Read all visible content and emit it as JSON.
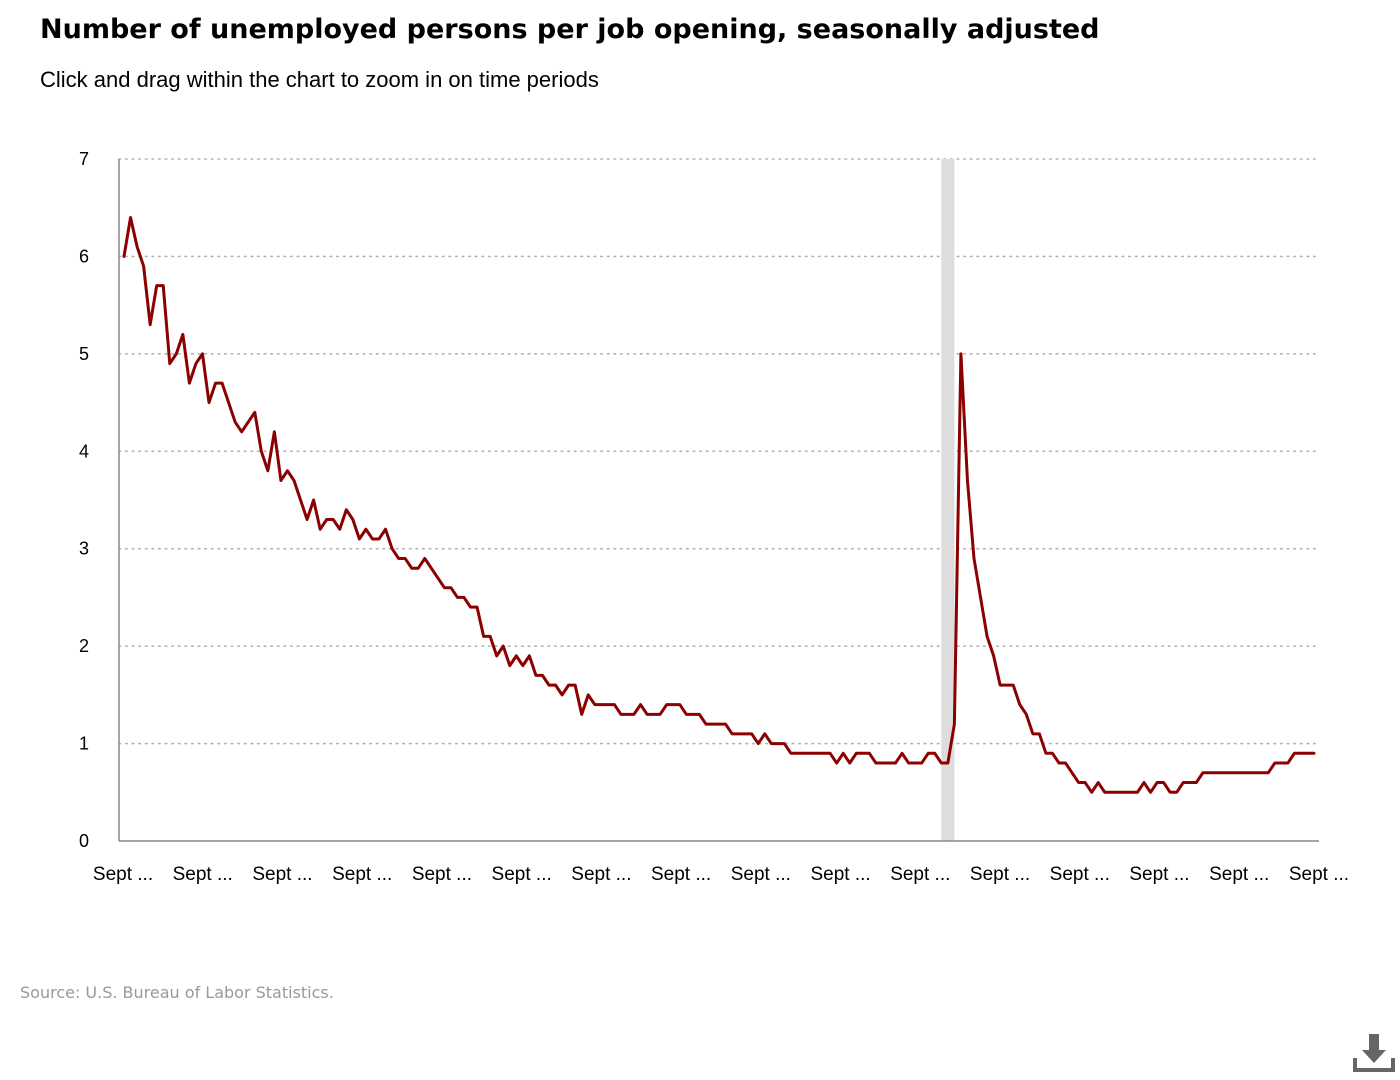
{
  "header": {
    "title": "Number of unemployed persons per job opening, seasonally adjusted",
    "subtitle": "Click and drag within the chart to zoom in on time periods"
  },
  "footer": {
    "source": "Source: U.S. Bureau of Labor Statistics."
  },
  "download": {
    "icon": "download-icon"
  },
  "colors": {
    "line": "#8b0000",
    "recession_band": "#dddddd",
    "grid": "#b3b3b3",
    "axis": "#888888"
  },
  "chart_data": {
    "type": "line",
    "title": "Number of unemployed persons per job opening, seasonally adjusted",
    "xlabel": "",
    "ylabel": "",
    "ylim": [
      0,
      7
    ],
    "yticks": [
      0,
      1,
      2,
      3,
      4,
      5,
      6,
      7
    ],
    "xtick_labels": [
      "Sept ...",
      "Sept ...",
      "Sept ...",
      "Sept ...",
      "Sept ...",
      "Sept ...",
      "Sept ...",
      "Sept ...",
      "Sept ...",
      "Sept ...",
      "Sept ...",
      "Sept ...",
      "Sept ...",
      "Sept ...",
      "Sept ...",
      "Sept ..."
    ],
    "grid": "horizontal-dotted",
    "shaded_periods": [
      {
        "start_index": 125,
        "end_index": 127
      }
    ],
    "series": [
      {
        "values": [
          6.0,
          6.4,
          6.1,
          5.9,
          5.3,
          5.7,
          5.7,
          4.9,
          5.0,
          5.2,
          4.7,
          4.9,
          5.0,
          4.5,
          4.7,
          4.7,
          4.5,
          4.3,
          4.2,
          4.3,
          4.4,
          4.0,
          3.8,
          4.2,
          3.7,
          3.8,
          3.7,
          3.5,
          3.3,
          3.5,
          3.2,
          3.3,
          3.3,
          3.2,
          3.4,
          3.3,
          3.1,
          3.2,
          3.1,
          3.1,
          3.2,
          3.0,
          2.9,
          2.9,
          2.8,
          2.8,
          2.9,
          2.8,
          2.7,
          2.6,
          2.6,
          2.5,
          2.5,
          2.4,
          2.4,
          2.1,
          2.1,
          1.9,
          2.0,
          1.8,
          1.9,
          1.8,
          1.9,
          1.7,
          1.7,
          1.6,
          1.6,
          1.5,
          1.6,
          1.6,
          1.3,
          1.5,
          1.4,
          1.4,
          1.4,
          1.4,
          1.3,
          1.3,
          1.3,
          1.4,
          1.3,
          1.3,
          1.3,
          1.4,
          1.4,
          1.4,
          1.3,
          1.3,
          1.3,
          1.2,
          1.2,
          1.2,
          1.2,
          1.1,
          1.1,
          1.1,
          1.1,
          1.0,
          1.1,
          1.0,
          1.0,
          1.0,
          0.9,
          0.9,
          0.9,
          0.9,
          0.9,
          0.9,
          0.9,
          0.8,
          0.9,
          0.8,
          0.9,
          0.9,
          0.9,
          0.8,
          0.8,
          0.8,
          0.8,
          0.9,
          0.8,
          0.8,
          0.8,
          0.9,
          0.9,
          0.8,
          0.8,
          1.2,
          5.0,
          3.7,
          2.9,
          2.5,
          2.1,
          1.9,
          1.6,
          1.6,
          1.6,
          1.4,
          1.3,
          1.1,
          1.1,
          0.9,
          0.9,
          0.8,
          0.8,
          0.7,
          0.6,
          0.6,
          0.5,
          0.6,
          0.5,
          0.5,
          0.5,
          0.5,
          0.5,
          0.5,
          0.6,
          0.5,
          0.6,
          0.6,
          0.5,
          0.5,
          0.6,
          0.6,
          0.6,
          0.7,
          0.7,
          0.7,
          0.7,
          0.7,
          0.7,
          0.7,
          0.7,
          0.7,
          0.7,
          0.7,
          0.8,
          0.8,
          0.8,
          0.9,
          0.9,
          0.9,
          0.9
        ]
      }
    ]
  }
}
